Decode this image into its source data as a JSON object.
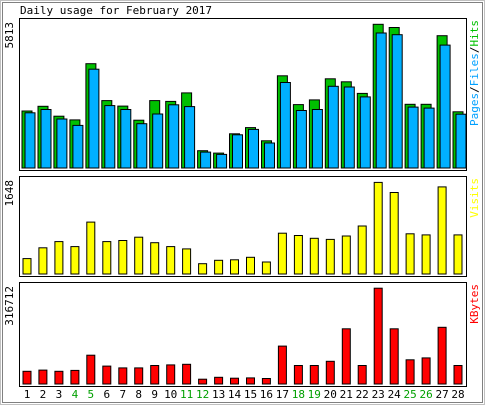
{
  "chart_data": {
    "type": "bar",
    "title": "Daily usage for February 2017",
    "categories": [
      "1",
      "2",
      "3",
      "4",
      "5",
      "6",
      "7",
      "8",
      "9",
      "10",
      "11",
      "12",
      "13",
      "14",
      "15",
      "16",
      "17",
      "18",
      "19",
      "20",
      "21",
      "22",
      "23",
      "24",
      "25",
      "26",
      "27",
      "28"
    ],
    "weekend_days": [
      "4",
      "5",
      "11",
      "12",
      "18",
      "19",
      "25",
      "26"
    ],
    "panels": [
      {
        "key": "hits",
        "max_label": "5813",
        "ylim": [
          0,
          5813
        ],
        "legend": [
          {
            "text": "Pages",
            "color": "#00a0ff"
          },
          {
            "text": "/",
            "color": "#000000"
          },
          {
            "text": "Files",
            "color": "#00a0ff"
          },
          {
            "text": "/",
            "color": "#000000"
          },
          {
            "text": "Hits",
            "color": "#00c000"
          }
        ],
        "series": [
          {
            "name": "Hits",
            "color": "#00c000",
            "values": [
              2300,
              2490,
              2090,
              1940,
              4210,
              2720,
              2500,
              1930,
              2720,
              2690,
              3030,
              700,
              600,
              1380,
              1630,
              1100,
              3720,
              2560,
              2750,
              3600,
              3480,
              3010,
              5800,
              5670,
              2570,
              2570,
              5340,
              2270
            ]
          },
          {
            "name": "Files",
            "color": "#00b0ff",
            "values": [
              2230,
              2360,
              1980,
              1720,
              3990,
              2520,
              2360,
              1790,
              2180,
              2550,
              2480,
              640,
              550,
              1340,
              1560,
              1010,
              3450,
              2320,
              2360,
              3300,
              3270,
              2870,
              5450,
              5380,
              2460,
              2420,
              4960,
              2170
            ]
          }
        ]
      },
      {
        "key": "visits",
        "max_label": "1648",
        "ylim": [
          0,
          1648
        ],
        "legend": [
          {
            "text": "Visits",
            "color": "#ffff00"
          }
        ],
        "series": [
          {
            "name": "Visits",
            "color": "#ffff00",
            "values": [
              275,
              470,
              580,
              490,
              930,
              580,
              600,
              660,
              560,
              490,
              450,
              185,
              245,
              255,
              300,
              215,
              730,
              690,
              640,
              620,
              680,
              860,
              1640,
              1460,
              720,
              700,
              1560,
              700
            ]
          }
        ]
      },
      {
        "key": "kbytes",
        "max_label": "316712",
        "ylim": [
          0,
          316712
        ],
        "legend": [
          {
            "text": "KBytes",
            "color": "#ff0000"
          }
        ],
        "series": [
          {
            "name": "KBytes",
            "color": "#ff0000",
            "values": [
              42000,
              46000,
              42000,
              45000,
              95000,
              59000,
              53000,
              53000,
              61000,
              63000,
              65000,
              16000,
              22000,
              19000,
              20000,
              18000,
              125000,
              61000,
              61000,
              75000,
              182000,
              61000,
              316000,
              182000,
              80000,
              86000,
              187000,
              61000
            ]
          }
        ]
      }
    ]
  }
}
